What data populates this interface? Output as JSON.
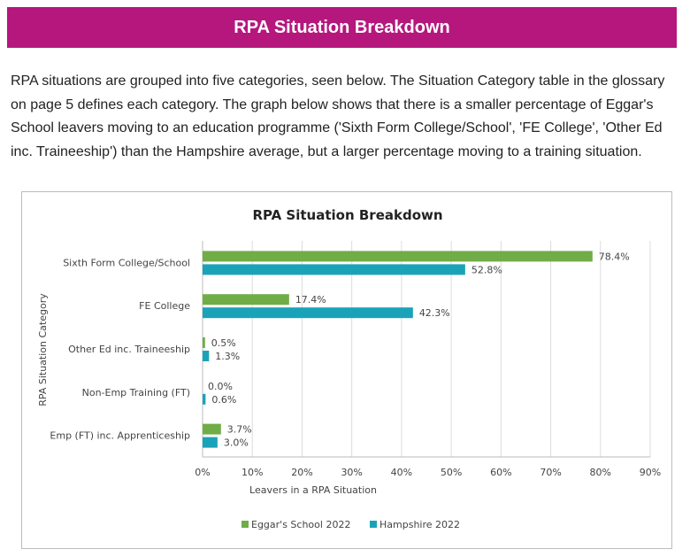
{
  "header": {
    "title": "RPA Situation Breakdown"
  },
  "intro": "RPA situations are grouped into five categories, seen below. The Situation Category table in the glossary on page 5 defines each category. The graph below shows that there is a smaller percentage of Eggar's School leavers moving to an education programme ('Sixth Form College/School', 'FE College', 'Other Ed inc. Traineeship') than the Hampshire average, but a larger percentage moving to a training situation.",
  "chart_data": {
    "type": "bar",
    "orientation": "horizontal",
    "title": "RPA Situation Breakdown",
    "xlabel": "Leavers in a RPA Situation",
    "ylabel": "RPA Situation Category",
    "xlim": [
      0,
      90
    ],
    "xticks": [
      "0%",
      "10%",
      "20%",
      "30%",
      "40%",
      "50%",
      "60%",
      "70%",
      "80%",
      "90%"
    ],
    "categories": [
      "Sixth Form College/School",
      "FE College",
      "Other Ed inc. Traineeship",
      "Non-Emp Training (FT)",
      "Emp (FT) inc. Apprenticeship"
    ],
    "series": [
      {
        "name": "Eggar's School 2022",
        "color": "#70ad47",
        "values": [
          78.4,
          17.4,
          0.5,
          0.0,
          3.7
        ],
        "labels": [
          "78.4%",
          "17.4%",
          "0.5%",
          "0.0%",
          "3.7%"
        ]
      },
      {
        "name": "Hampshire 2022",
        "color": "#1aa3b8",
        "values": [
          52.8,
          42.3,
          1.3,
          0.6,
          3.0
        ],
        "labels": [
          "52.8%",
          "42.3%",
          "1.3%",
          "0.6%",
          "3.0%"
        ]
      }
    ],
    "grid": true,
    "legend": "bottom"
  }
}
